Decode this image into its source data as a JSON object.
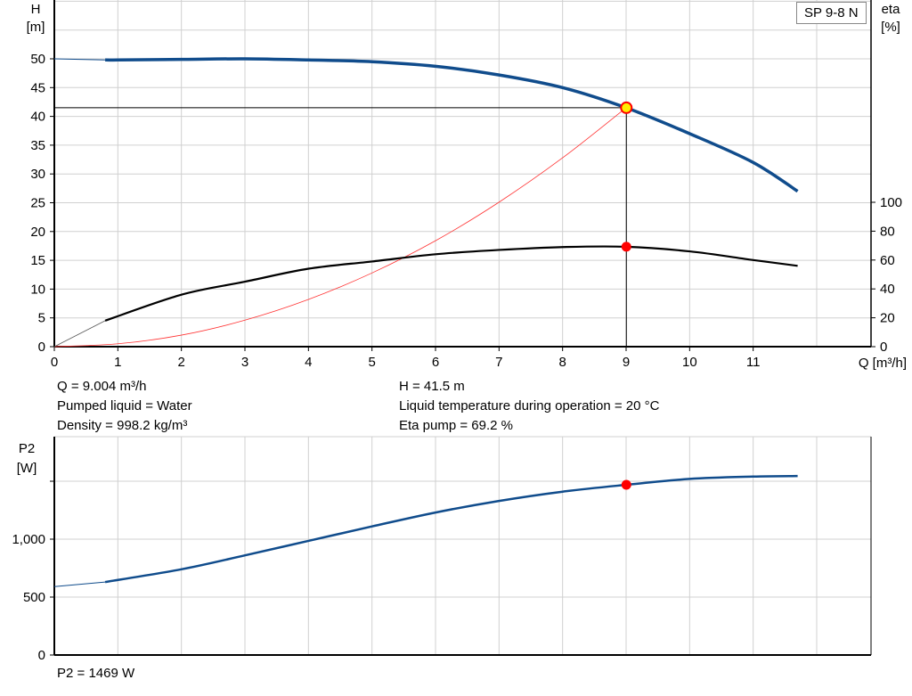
{
  "model_label": "SP 9-8 N",
  "info": {
    "q": "Q = 9.004 m³/h",
    "h": "H = 41.5 m",
    "liquid": "Pumped liquid = Water",
    "temp": "Liquid temperature during operation = 20 °C",
    "density": "Density = 998.2 kg/m³",
    "eta": "Eta pump = 69.2 %",
    "p2": "P2 = 1469 W"
  },
  "colors": {
    "head": "#104c8c",
    "eta": "#000000",
    "system": "#ff3333",
    "point": "#ff0000",
    "point_head_fill": "#ffee00",
    "grid": "#d0d0d0"
  },
  "chart_data": [
    {
      "type": "line",
      "ylabel": "H\n[m]",
      "y2label": "eta\n[%]",
      "xlabel": "Q [m³/h]",
      "xlim": [
        0,
        12.8
      ],
      "ylim": [
        0,
        60
      ],
      "y2lim": [
        0,
        100
      ],
      "xticks": [
        0,
        1,
        2,
        3,
        4,
        5,
        6,
        7,
        8,
        9,
        10,
        11
      ],
      "yticks": [
        0,
        5,
        10,
        15,
        20,
        25,
        30,
        35,
        40,
        45,
        50
      ],
      "y2ticks": [
        0,
        20,
        40,
        60,
        80,
        100
      ],
      "grid": true,
      "series": [
        {
          "key": "head",
          "axis": "left",
          "x": [
            0,
            0.8,
            1,
            2,
            3,
            4,
            5,
            6,
            7,
            8,
            9,
            10,
            11,
            11.7
          ],
          "y": [
            50,
            49.8,
            49.8,
            49.9,
            50,
            49.8,
            49.5,
            48.7,
            47.2,
            45,
            41.5,
            37,
            32,
            27
          ]
        },
        {
          "key": "eta",
          "axis": "right",
          "x": [
            0,
            0.8,
            2,
            3,
            4,
            5,
            6,
            7,
            8,
            9,
            10,
            11,
            11.7
          ],
          "y": [
            0,
            18,
            36,
            45,
            54,
            59,
            64,
            67,
            69,
            69.2,
            66,
            60,
            56
          ]
        },
        {
          "key": "system",
          "axis": "left",
          "x": [
            0,
            1,
            2,
            3,
            4,
            5,
            6,
            7,
            8,
            9
          ],
          "y": [
            0,
            0.5,
            2,
            4.6,
            8.2,
            12.8,
            18.4,
            25.1,
            32.8,
            41.5
          ]
        }
      ],
      "duty_point": {
        "q": 9.004,
        "h": 41.5,
        "eta": 69.2
      }
    },
    {
      "type": "line",
      "ylabel": "P2\n[W]",
      "xlim": [
        0,
        12.8
      ],
      "ylim": [
        0,
        1800
      ],
      "yticks": [
        0,
        500,
        1000,
        1500
      ],
      "ytick_labels": [
        "0",
        "500",
        "1,000",
        ""
      ],
      "grid": true,
      "series": [
        {
          "key": "p2",
          "x": [
            0,
            0.8,
            2,
            3,
            4,
            5,
            6,
            7,
            8,
            9,
            10,
            11,
            11.7
          ],
          "y": [
            590,
            630,
            740,
            860,
            985,
            1110,
            1230,
            1330,
            1410,
            1469,
            1520,
            1540,
            1545
          ]
        }
      ],
      "duty_point": {
        "q": 9.004,
        "p2": 1469
      }
    }
  ]
}
